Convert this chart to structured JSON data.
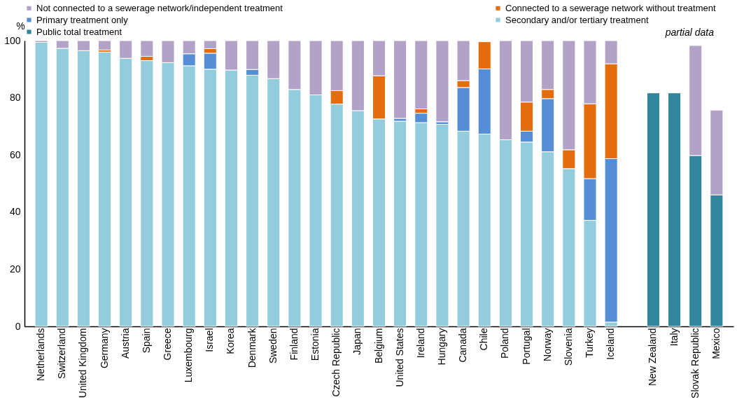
{
  "chart_data": {
    "type": "bar",
    "stacked": true,
    "ylabel": "%",
    "ylim": [
      0,
      100
    ],
    "yticks": [
      0,
      20,
      40,
      60,
      80,
      100
    ],
    "grid": false,
    "legend": "top",
    "categories": [
      "Netherlands",
      "Switzerland",
      "United Kingdom",
      "Germany",
      "Austria",
      "Spain",
      "Greece",
      "Luxembourg",
      "Israel",
      "Korea",
      "Denmark",
      "Sweden",
      "Finland",
      "Estonia",
      "Czech Republic",
      "Japan",
      "Belgium",
      "United States",
      "Ireland",
      "Hungary",
      "Canada",
      "Chile",
      "Poland",
      "Portugal",
      "Norway",
      "Slovenia",
      "Turkey",
      "Iceland",
      null,
      "New Zealand",
      "Italy",
      "Slovak Republic",
      "Mexico"
    ],
    "series": [
      {
        "name": "Public total treatment",
        "color": "#31859c",
        "values": [
          null,
          null,
          null,
          null,
          null,
          null,
          null,
          null,
          null,
          null,
          null,
          null,
          null,
          null,
          null,
          null,
          null,
          null,
          null,
          null,
          null,
          null,
          null,
          null,
          null,
          null,
          null,
          null,
          null,
          81.7,
          81.7,
          59.8,
          46
        ]
      },
      {
        "name": "Secondary and/or tertiary treatment",
        "color": "#93cddd",
        "values": [
          99.4,
          97.3,
          96.5,
          96,
          93.8,
          93,
          92.3,
          91.2,
          90,
          89.7,
          87.9,
          86.7,
          82.9,
          81,
          77.8,
          75.5,
          72.6,
          71.8,
          71.3,
          70.7,
          68.3,
          67.3,
          65.3,
          64.5,
          61.1,
          55.2,
          37.1,
          1.5,
          null,
          null,
          null,
          null,
          null
        ]
      },
      {
        "name": "Primary treatment only",
        "color": "#558ed5",
        "values": [
          null,
          null,
          null,
          null,
          null,
          null,
          null,
          4.2,
          5.6,
          null,
          2,
          null,
          null,
          null,
          null,
          null,
          null,
          1,
          3.3,
          0.9,
          15.3,
          22.8,
          null,
          3.8,
          18.6,
          null,
          14.6,
          57.2,
          null,
          null,
          null,
          null,
          null
        ]
      },
      {
        "name": "Connected to a sewerage network without treatment",
        "color": "#e46c0a",
        "values": [
          null,
          null,
          null,
          0.7,
          null,
          1.5,
          null,
          null,
          1.6,
          null,
          null,
          null,
          null,
          null,
          4.7,
          null,
          15.1,
          null,
          1.5,
          null,
          2.4,
          9.5,
          null,
          10.2,
          3.2,
          6.6,
          26.2,
          33.2,
          null,
          null,
          null,
          null,
          null
        ]
      },
      {
        "name": "Not connected to a sewerage network/independent treatment",
        "color": "#b3a2c7",
        "values": [
          0.6,
          2.7,
          3.5,
          3.3,
          6.2,
          5.5,
          7.7,
          4.6,
          2.8,
          10.3,
          10.1,
          13.3,
          17.1,
          19,
          17.5,
          24.5,
          12.3,
          27.2,
          23.9,
          28.4,
          14,
          null,
          34.7,
          21.5,
          17.1,
          38.2,
          22.1,
          8.1,
          null,
          null,
          null,
          38.5,
          29.7
        ]
      }
    ],
    "annotations": [
      "partial data"
    ]
  }
}
